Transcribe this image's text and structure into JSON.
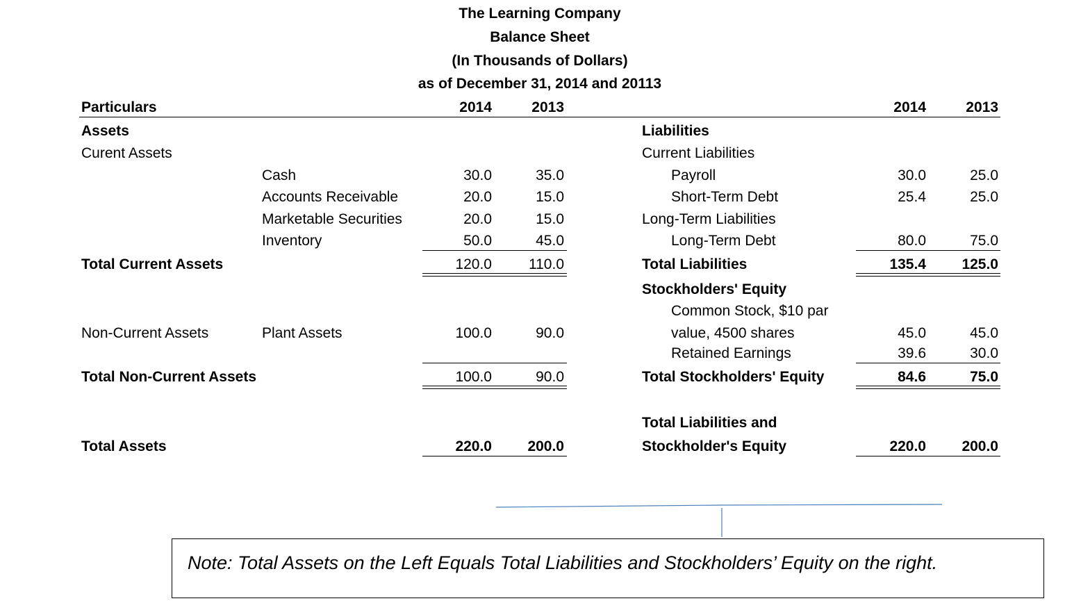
{
  "header": {
    "company": "The Learning Company",
    "statement": "Balance Sheet",
    "units": "(In Thousands of Dollars)",
    "as_of": "as of December 31, 2014 and 20113"
  },
  "columns": {
    "particulars": "Particulars",
    "y1": "2014",
    "y2": "2013"
  },
  "assets": {
    "title": "Assets",
    "current_title": "Curent Assets",
    "current_items": [
      {
        "label": "Cash",
        "y1": "30.0",
        "y2": "35.0"
      },
      {
        "label": "Accounts Receivable",
        "y1": "20.0",
        "y2": "15.0"
      },
      {
        "label": "Marketable Securities",
        "y1": "20.0",
        "y2": "15.0"
      },
      {
        "label": "Inventory",
        "y1": "50.0",
        "y2": "45.0"
      }
    ],
    "total_current": {
      "label": "Total Current Assets",
      "y1": "120.0",
      "y2": "110.0"
    },
    "noncurrent_title": "Non-Current Assets",
    "noncurrent_items": [
      {
        "label": "Plant Assets",
        "y1": "100.0",
        "y2": "90.0"
      }
    ],
    "total_noncurrent": {
      "label": "Total Non-Current Assets",
      "y1": "100.0",
      "y2": "90.0"
    },
    "total": {
      "label": "Total Assets",
      "y1": "220.0",
      "y2": "200.0"
    }
  },
  "liabilities": {
    "title": "Liabilities",
    "current_title": "Current Liabilities",
    "current_items": [
      {
        "label": "Payroll",
        "y1": "30.0",
        "y2": "25.0"
      },
      {
        "label": "Short-Term Debt",
        "y1": "25.4",
        "y2": "25.0"
      }
    ],
    "longterm_title": "Long-Term Liabilities",
    "longterm_items": [
      {
        "label": "Long-Term Debt",
        "y1": "80.0",
        "y2": "75.0"
      }
    ],
    "total": {
      "label": "Total Liabilities",
      "y1": "135.4",
      "y2": "125.0"
    }
  },
  "equity": {
    "title": "Stockholders' Equity",
    "common_stock_line1": "Common Stock, $10 par",
    "common_stock_line2": "value, 4500 shares",
    "common_stock": {
      "y1": "45.0",
      "y2": "45.0"
    },
    "retained": {
      "label": "Retained Earnings",
      "y1": "39.6",
      "y2": "30.0"
    },
    "total": {
      "label": "Total Stockholders' Equity",
      "y1": "84.6",
      "y2": "75.0"
    }
  },
  "grand_total": {
    "label_line1": "Total Liabilities and",
    "label_line2": "Stockholder's Equity",
    "y1": "220.0",
    "y2": "200.0"
  },
  "note": "Note: Total Assets on the Left Equals Total Liabilities and Stockholders’ Equity on the right.",
  "colors": {
    "connector": "#4a7ebb"
  }
}
